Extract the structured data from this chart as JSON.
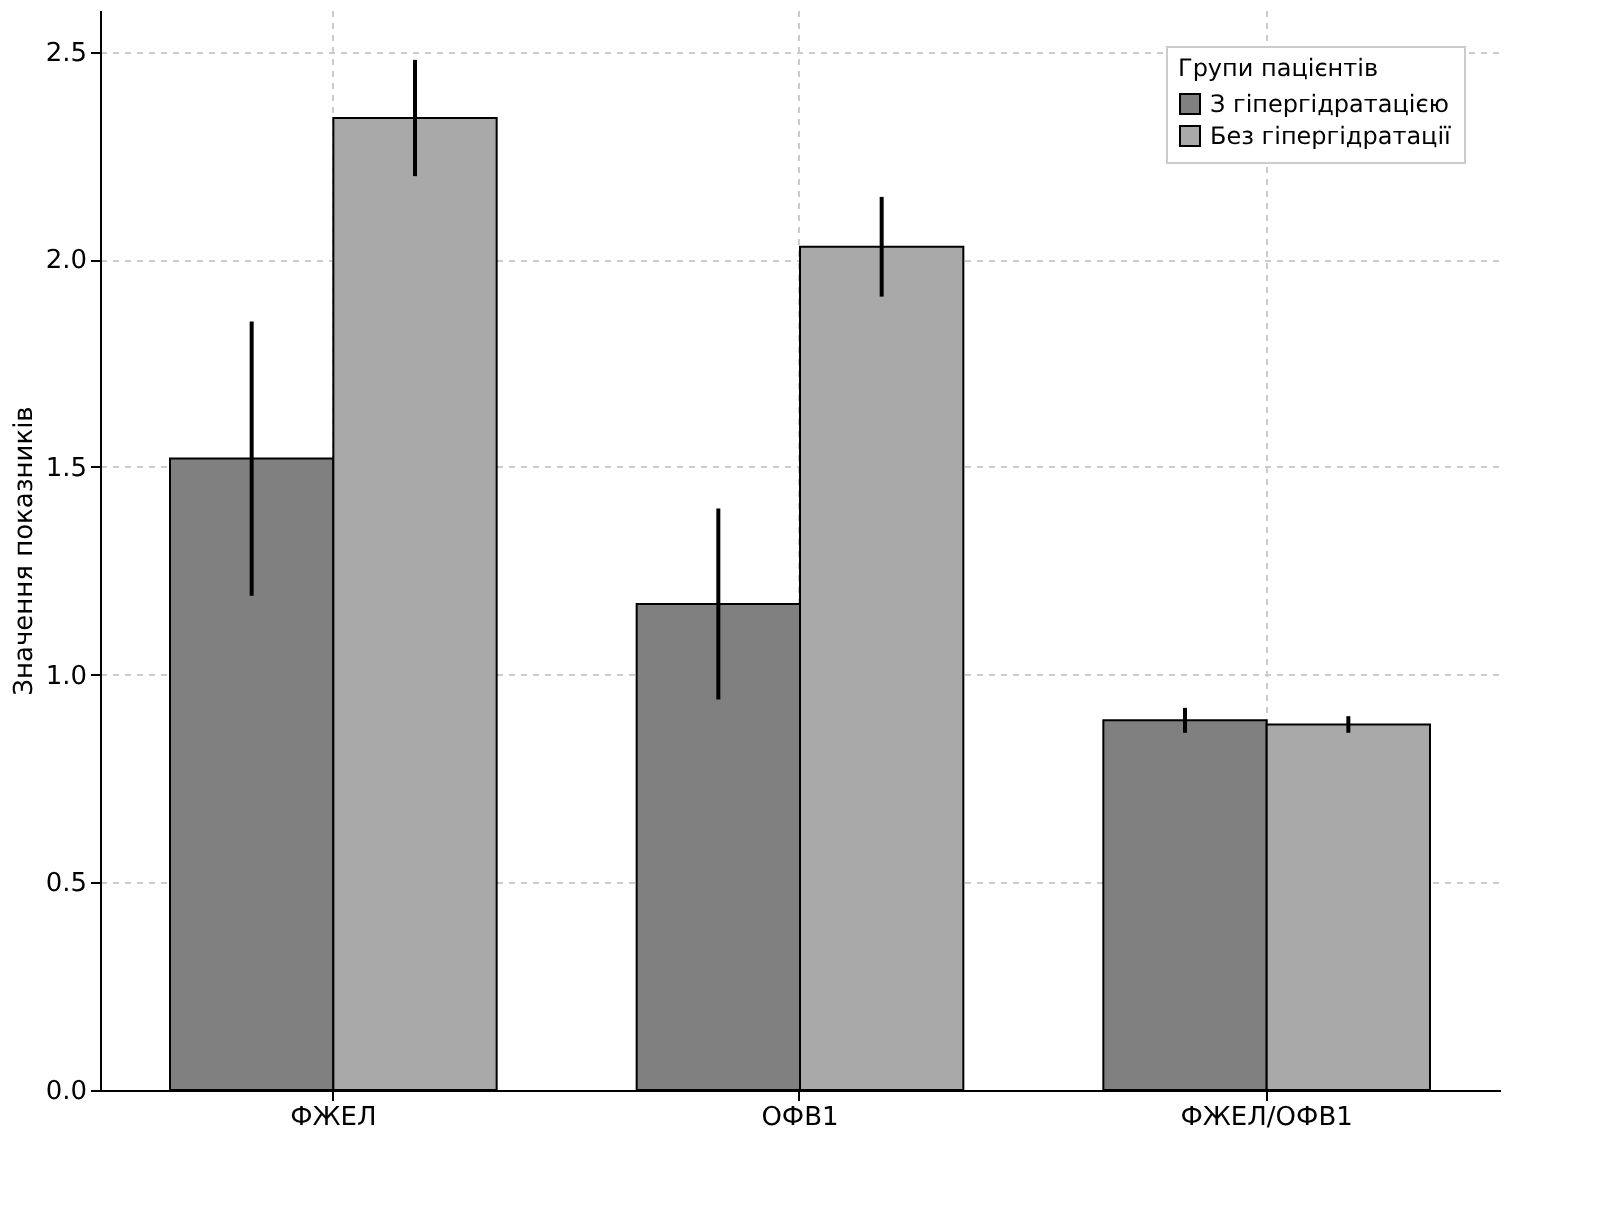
{
  "chart_data": {
    "type": "bar",
    "ylabel": "Значення показників",
    "legend_title": "Групи пацієнтів",
    "categories": [
      "ФЖЕЛ",
      "ОФВ1",
      "ФЖЕЛ/ОФВ1"
    ],
    "series": [
      {
        "name": "З гіпергідратацією",
        "color": "#808080",
        "values": [
          1.52,
          1.17,
          0.89
        ],
        "errors": [
          0.33,
          0.23,
          0.03
        ]
      },
      {
        "name": "Без гіпергідратації",
        "color": "#a9a9a9",
        "values": [
          2.34,
          2.03,
          0.88
        ],
        "errors": [
          0.14,
          0.12,
          0.02
        ]
      }
    ],
    "ylim": [
      0,
      2.6
    ],
    "yticks": [
      {
        "value": 0,
        "label": "0.0"
      },
      0.5,
      {
        "value": 1,
        "label": "1.0"
      },
      1.5,
      {
        "value": 2,
        "label": "2.0"
      },
      2.5
    ],
    "grid": true,
    "legend": "top right"
  }
}
